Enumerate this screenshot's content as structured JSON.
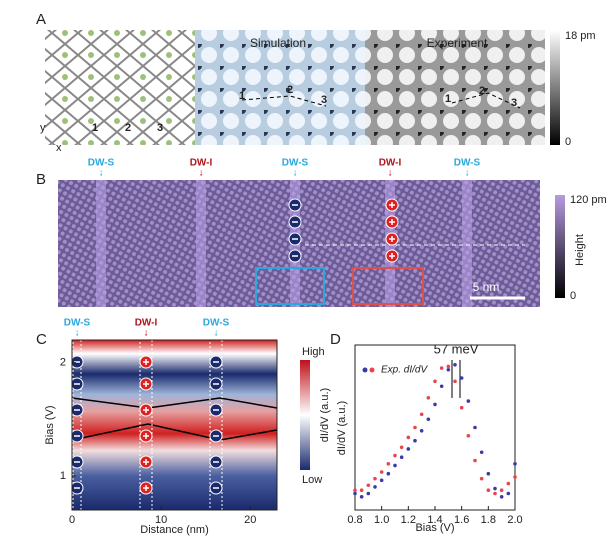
{
  "panels": {
    "A": {
      "label": "A",
      "simulation": "Simulation",
      "experiment": "Experiment",
      "sites": [
        "1",
        "2",
        "3"
      ],
      "sim_sites": [
        "1",
        "2",
        "3"
      ],
      "exp_sites": [
        "1",
        "2",
        "3"
      ],
      "axis_y": "y",
      "axis_x": "x",
      "colorbar_max": "18 pm",
      "colorbar_min": "0"
    },
    "B": {
      "label": "B",
      "walls": [
        "DW-S",
        "DW-I",
        "DW-S",
        "DW-I",
        "DW-S"
      ],
      "scale": "5 nm",
      "colorbar_max": "120 pm",
      "colorbar_min": "0",
      "colorbar_title": "Height"
    },
    "C": {
      "label": "C",
      "walls": [
        "DW-S",
        "DW-I",
        "DW-S"
      ],
      "colorbar_max": "High",
      "colorbar_min": "Low",
      "colorbar_title": "dI/dV (a.u.)"
    },
    "D": {
      "label": "D"
    }
  },
  "chart_data": [
    {
      "type": "heatmap",
      "xlabel": "Distance (nm)",
      "ylabel": "Bias (V)",
      "xlim": [
        0,
        23
      ],
      "xticks": [
        0,
        10,
        20
      ],
      "ylim": [
        0.7,
        2.2
      ],
      "yticks": [
        1,
        2
      ]
    },
    {
      "type": "scatter",
      "xlabel": "Bias (V)",
      "ylabel": "dI/dV (a.u.)",
      "annotation": "57 meV",
      "legend": "Exp. dI/dV",
      "xlim": [
        0.8,
        2.0
      ],
      "ylim": [
        0,
        1
      ],
      "xticks": [
        {
          "value": 0.8,
          "label": "0.8"
        },
        {
          "value": 1,
          "label": "1.0"
        },
        {
          "value": 1.2,
          "label": "1.2"
        },
        {
          "value": 1.4,
          "label": "1.4"
        },
        {
          "value": 1.6,
          "label": "1.6"
        },
        {
          "value": 1.8,
          "label": "1.8"
        },
        {
          "value": 2,
          "label": "2.0"
        }
      ],
      "x": [
        0.8,
        0.85,
        0.9,
        0.95,
        1.0,
        1.05,
        1.1,
        1.15,
        1.2,
        1.25,
        1.3,
        1.35,
        1.4,
        1.45,
        1.5,
        1.55,
        1.6,
        1.65,
        1.7,
        1.75,
        1.8,
        1.85,
        1.9,
        1.95,
        2.0
      ],
      "series": [
        {
          "color": "#3a3aa8",
          "values": [
            0.1,
            0.08,
            0.1,
            0.14,
            0.18,
            0.22,
            0.27,
            0.32,
            0.37,
            0.42,
            0.48,
            0.55,
            0.64,
            0.75,
            0.85,
            0.88,
            0.8,
            0.66,
            0.5,
            0.35,
            0.22,
            0.13,
            0.08,
            0.1,
            0.28
          ]
        },
        {
          "color": "#e8454f",
          "values": [
            0.12,
            0.12,
            0.15,
            0.19,
            0.23,
            0.28,
            0.33,
            0.38,
            0.44,
            0.5,
            0.58,
            0.68,
            0.78,
            0.86,
            0.87,
            0.78,
            0.62,
            0.45,
            0.3,
            0.19,
            0.12,
            0.1,
            0.12,
            0.16,
            0.2
          ]
        }
      ]
    }
  ]
}
